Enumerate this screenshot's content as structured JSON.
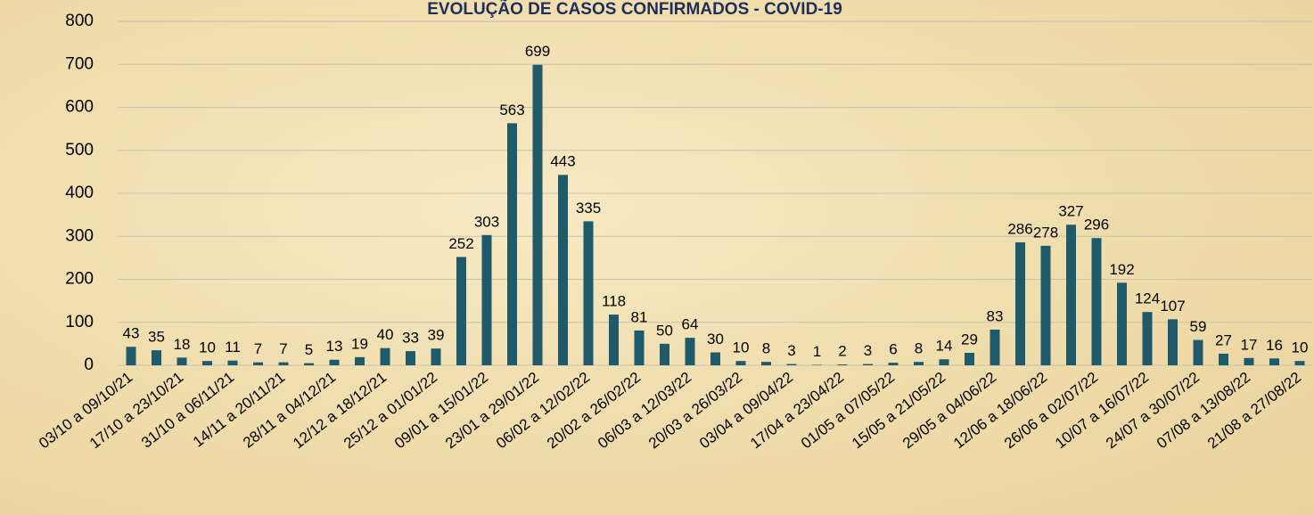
{
  "chart_data": {
    "type": "bar",
    "title": "EVOLUÇÃO DE CASOS CONFIRMADOS -  COVID-19",
    "categories": [
      "03/10 a 09/10/21",
      null,
      "17/10 a 23/10/21",
      null,
      "31/10 a 06/11/21",
      null,
      "14/11 a 20/11/21",
      null,
      "28/11 a 04/12/21",
      null,
      "12/12 a 18/12/21",
      null,
      "25/12 a 01/01/22",
      null,
      "09/01 a 15/01/22",
      null,
      "23/01 a 29/01/22",
      null,
      "06/02 a 12/02/22",
      null,
      "20/02 a 26/02/22",
      null,
      "06/03 a 12/03/22",
      null,
      "20/03 a 26/03/22",
      null,
      "03/04 a 09/04/22",
      null,
      "17/04 a 23/04/22",
      null,
      "01/05 a 07/05/22",
      null,
      "15/05 a 21/05/22",
      null,
      "29/05 a 04/06/22",
      null,
      "12/06 a 18/06/22",
      null,
      "26/06 a 02/07/22",
      null,
      "10/07 a 16/07/22",
      null,
      "24/07 a 30/07/22",
      null,
      "07/08 a 13/08/22",
      null,
      "21/08 a 27/08/22"
    ],
    "values": [
      43,
      35,
      18,
      10,
      11,
      7,
      7,
      5,
      13,
      19,
      40,
      33,
      39,
      252,
      303,
      563,
      699,
      443,
      335,
      118,
      81,
      50,
      64,
      30,
      10,
      8,
      3,
      1,
      2,
      3,
      6,
      8,
      14,
      29,
      83,
      286,
      278,
      327,
      296,
      192,
      124,
      107,
      59,
      27,
      17,
      16,
      10
    ],
    "color": "#1f5a6b",
    "ylim": [
      0,
      800
    ],
    "yticks": [
      0,
      100,
      200,
      300,
      400,
      500,
      600,
      700,
      800
    ],
    "grid": true
  }
}
